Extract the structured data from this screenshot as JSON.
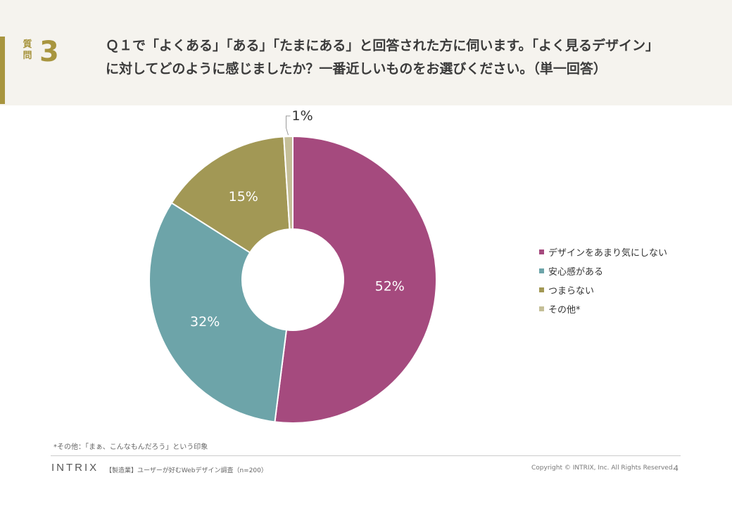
{
  "header": {
    "question_label": "質問",
    "question_number": "3",
    "question_text_line1": "Ｑ１で「よくある」「ある」「たまにある」と回答された方に伺います。「よく見るデザイン」",
    "question_text_line2": "に対してどのように感じましたか？一番近しいものをお選びください。（単一回答）"
  },
  "chart_data": {
    "type": "pie",
    "style": "donut",
    "title": "",
    "categories": [
      "デザインをあまり気にしない",
      "安心感がある",
      "つまらない",
      "その他*"
    ],
    "values": [
      52,
      32,
      15,
      1
    ],
    "labels": [
      "52%",
      "32%",
      "15%",
      "1%"
    ],
    "colors": [
      "#a54a7e",
      "#6da4a9",
      "#a29855",
      "#c5bf98"
    ],
    "legend_position": "right"
  },
  "footnote": "*その他：「まぁ、こんなもんだろう」という印象",
  "footer": {
    "logo": "INTRIX",
    "survey": "【製造業】ユーザーが好むWebデザイン調査（n=200）",
    "copyright": "Copyright © INTRIX, Inc. All Rights Reserved.",
    "page_number": "4"
  }
}
